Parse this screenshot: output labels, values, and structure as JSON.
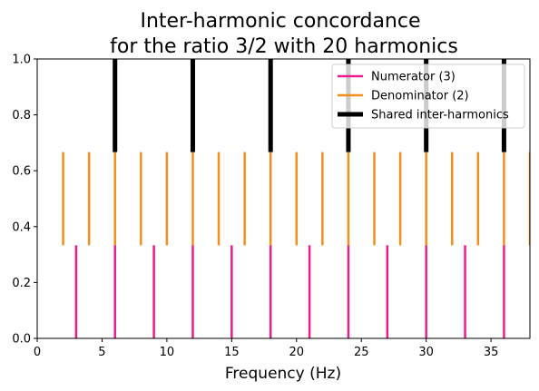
{
  "chart_data": {
    "type": "line",
    "title_line1": "Inter-harmonic concordance",
    "title_line2": "for the ratio 3/2 with 20 harmonics",
    "xlabel": "Frequency (Hz)",
    "ylabel": "",
    "xlim": [
      0,
      38
    ],
    "ylim": [
      0,
      1
    ],
    "xticks": [
      0,
      5,
      10,
      15,
      20,
      25,
      30,
      35
    ],
    "yticks": [
      0.0,
      0.2,
      0.4,
      0.6,
      0.8,
      1.0
    ],
    "ytick_labels": [
      "0.0",
      "0.2",
      "0.4",
      "0.6",
      "0.8",
      "1.0"
    ],
    "legend_position": "top-right",
    "series": [
      {
        "name": "Numerator (3)",
        "color": "#e91e8c",
        "y_range": [
          0,
          0.333
        ],
        "x": [
          3,
          6,
          9,
          12,
          15,
          18,
          21,
          24,
          27,
          30,
          33,
          36
        ]
      },
      {
        "name": "Denominator (2)",
        "color": "#f28e1c",
        "y_range": [
          0.333,
          0.667
        ],
        "x": [
          2,
          4,
          6,
          8,
          10,
          12,
          14,
          16,
          18,
          20,
          22,
          24,
          26,
          28,
          30,
          32,
          34,
          36,
          38
        ]
      },
      {
        "name": "Shared inter-harmonics",
        "color": "#000000",
        "y_range": [
          0.667,
          1.0
        ],
        "x": [
          6,
          12,
          18,
          24,
          30,
          36
        ]
      }
    ]
  }
}
